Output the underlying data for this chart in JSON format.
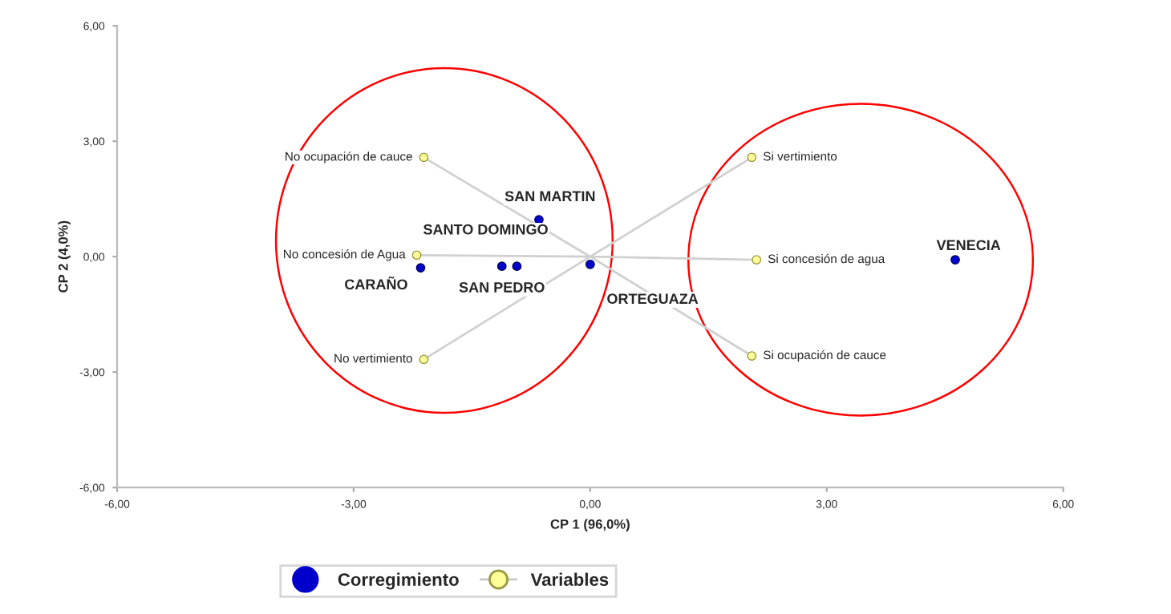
{
  "chart_data": {
    "type": "scatter",
    "xlabel": "CP 1 (96,0%)",
    "ylabel": "CP 2 (4,0%)",
    "xlim": [
      -6,
      6
    ],
    "ylim": [
      -6,
      6
    ],
    "xticks": [
      {
        "value": -6,
        "label": "-6,00"
      },
      {
        "value": -3,
        "label": "-3,00"
      },
      {
        "value": 0,
        "label": "0,00"
      },
      {
        "value": 3,
        "label": "3,00"
      },
      {
        "value": 6,
        "label": "6,00"
      }
    ],
    "yticks": [
      {
        "value": -6,
        "label": "-6,00"
      },
      {
        "value": -3,
        "label": "-3,00"
      },
      {
        "value": 0,
        "label": "0,00"
      },
      {
        "value": 3,
        "label": "3,00"
      },
      {
        "value": 6,
        "label": "6,00"
      }
    ],
    "grid": false,
    "legend": "bottom",
    "series": [
      {
        "name": "Corregimiento",
        "marker": "circle",
        "color": "#0000cc",
        "x": [
          -0.65,
          -2.15,
          -0.93,
          -1.12,
          0.0,
          4.63
        ],
        "values": [
          0.96,
          -0.29,
          -0.25,
          -0.25,
          -0.2,
          -0.08
        ]
      },
      {
        "type": "line",
        "marker": "none",
        "color": "#d0d0d0",
        "x": [
          0,
          -2.11,
          0,
          -2.2,
          0,
          -2.11,
          0,
          2.05,
          0,
          2.11,
          0,
          2.05
        ],
        "values": [
          0,
          2.58,
          0,
          0.04,
          0,
          -2.67,
          0,
          2.58,
          0,
          -0.08,
          0,
          -2.58
        ]
      },
      {
        "name": "Variables",
        "type": "scatter",
        "marker": "circle",
        "color": "#ffff99",
        "x": [
          -2.11,
          -2.2,
          -2.11,
          2.05,
          2.11,
          2.05
        ],
        "values": [
          2.58,
          0.04,
          -2.67,
          2.58,
          -0.08,
          -2.58
        ]
      }
    ],
    "annotations": [
      {
        "text": "SAN MARTIN",
        "x": -0.65,
        "y": 0.96
      },
      {
        "text": "CARAÑO",
        "x": -2.15,
        "y": -0.29
      },
      {
        "text": "SANTO DOMINGO",
        "x": -0.93,
        "y": -0.25
      },
      {
        "text": "SAN PEDRO",
        "x": -1.12,
        "y": -0.25
      },
      {
        "text": "ORTEGUAZA",
        "x": 0.0,
        "y": -0.2
      },
      {
        "text": "VENECIA",
        "x": 4.63,
        "y": -0.08
      },
      {
        "text": "No ocupación de cauce",
        "x": -2.11,
        "y": 2.58
      },
      {
        "text": "No concesión de Agua",
        "x": -2.2,
        "y": 0.04
      },
      {
        "text": "No vertimiento",
        "x": -2.11,
        "y": -2.67
      },
      {
        "text": "Si vertimiento",
        "x": 2.05,
        "y": 2.58
      },
      {
        "text": "Si concesión de agua",
        "x": 2.11,
        "y": -0.08
      },
      {
        "text": "Si ocupación de cauce",
        "x": 2.05,
        "y": -2.58
      }
    ]
  }
}
